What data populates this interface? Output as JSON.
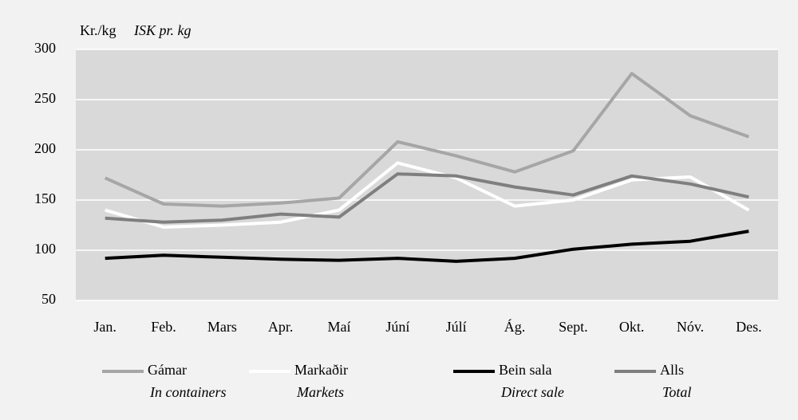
{
  "chart_data": {
    "type": "line",
    "ylabel": "Kr./kg",
    "ylabel_en": "ISK pr. kg",
    "categories": [
      "Jan.",
      "Feb.",
      "Mars",
      "Apr.",
      "Maí",
      "Júní",
      "Júlí",
      "Ág.",
      "Sept.",
      "Okt.",
      "Nóv.",
      "Des."
    ],
    "series": [
      {
        "name": "Gámar",
        "name_en": "In containers",
        "color": "#a6a6a6",
        "values": [
          172,
          146,
          144,
          147,
          152,
          208,
          194,
          178,
          199,
          276,
          234,
          213
        ]
      },
      {
        "name": "Markaðir",
        "name_en": "Markets",
        "color": "#ffffff",
        "values": [
          140,
          123,
          125,
          128,
          140,
          187,
          172,
          144,
          150,
          170,
          173,
          140
        ]
      },
      {
        "name": "Bein sala",
        "name_en": "Direct sale",
        "color": "#000000",
        "values": [
          92,
          95,
          93,
          91,
          90,
          92,
          89,
          92,
          101,
          106,
          109,
          119
        ]
      },
      {
        "name": "Alls",
        "name_en": "Total",
        "color": "#7f7f7f",
        "values": [
          132,
          128,
          130,
          136,
          133,
          176,
          174,
          163,
          155,
          174,
          166,
          153
        ]
      }
    ],
    "ylim": [
      50,
      300
    ],
    "yticks": [
      50,
      100,
      150,
      200,
      250,
      300
    ],
    "grid": true
  }
}
